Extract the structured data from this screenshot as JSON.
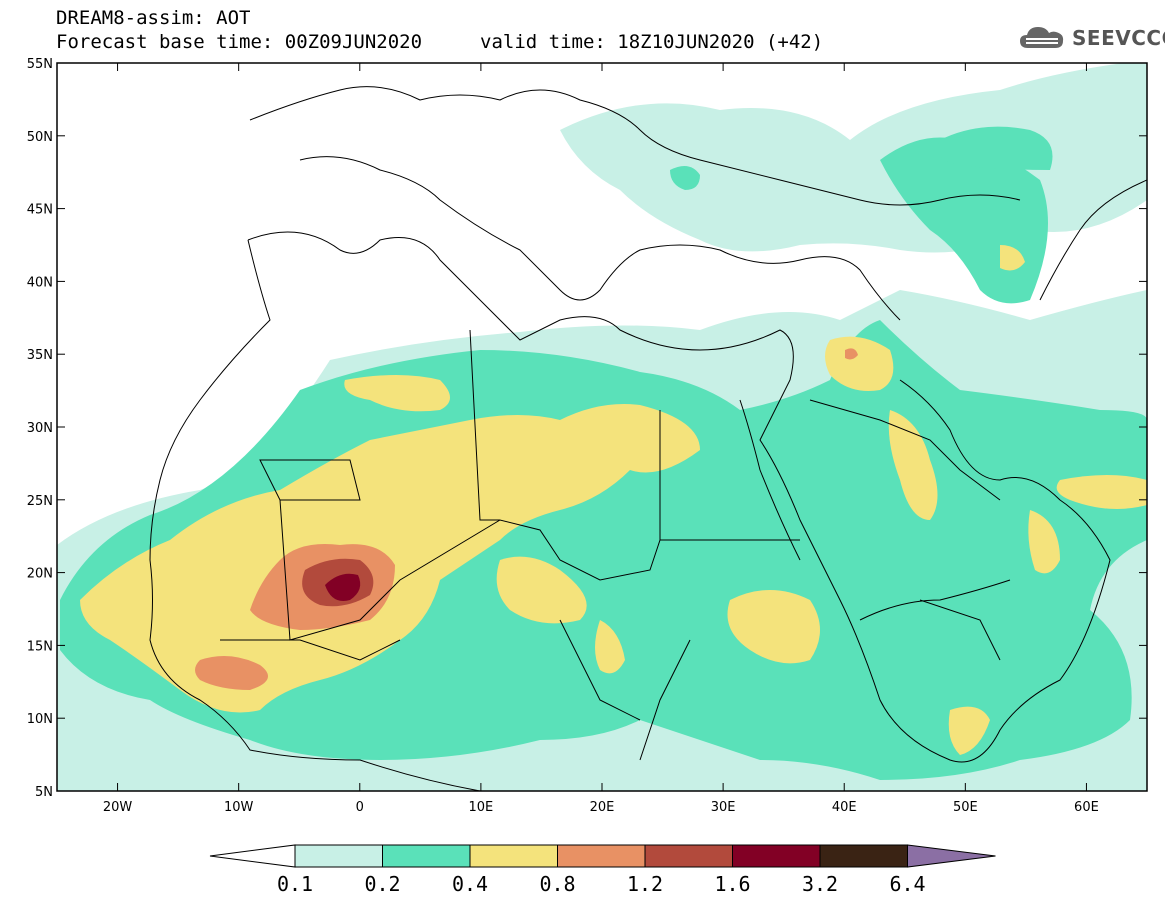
{
  "header": {
    "title_line1": "DREAM8-assim: AOT",
    "title_line2": "Forecast base time: 00Z09JUN2020",
    "valid_time": "valid time: 18Z10JUN2020 (+42)"
  },
  "logo": {
    "text": "SEEVCCC",
    "icon": "cloud-icon"
  },
  "map": {
    "projection": "lat-lon",
    "lat_range": [
      5,
      55
    ],
    "lon_range": [
      -25,
      65
    ],
    "lat_ticks": [
      "5N",
      "10N",
      "15N",
      "20N",
      "25N",
      "30N",
      "35N",
      "40N",
      "45N",
      "50N",
      "55N"
    ],
    "lon_ticks": [
      "20W",
      "10W",
      "0",
      "10E",
      "20E",
      "30E",
      "40E",
      "50E",
      "60E"
    ],
    "boundaries": "national borders and coastlines (black lines)"
  },
  "colorbar": {
    "labels": [
      "0.1",
      "0.2",
      "0.4",
      "0.8",
      "1.2",
      "1.6",
      "3.2",
      "6.4"
    ],
    "colors": [
      "#ffffff",
      "#c8f0e6",
      "#5ae1b9",
      "#f4e37c",
      "#e89164",
      "#b24a3c",
      "#820025",
      "#3a2314",
      "#8b6fa4"
    ]
  }
}
